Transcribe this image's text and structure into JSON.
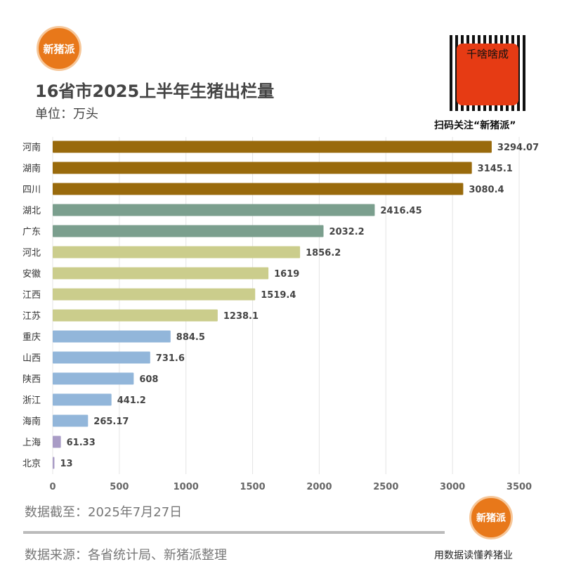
{
  "header": {
    "logo_text": "新猪派",
    "title": "16省市2025上半年生猪出栏量",
    "unit": "单位：万头",
    "qr_overlay_text": "千啥啥成",
    "qr_caption": "扫码关注“新猪派”"
  },
  "footer": {
    "date_note": "数据截至：2025年7月27日",
    "source": "数据来源：各省统计局、新猪派整理",
    "logo_text": "新猪派",
    "slogan": "用数据读懂养猪业"
  },
  "chart_data": {
    "type": "bar",
    "orientation": "horizontal",
    "title": "16省市2025上半年生猪出栏量",
    "ylabel": "",
    "xlabel": "",
    "xlim": [
      0,
      3500
    ],
    "xticks": [
      0,
      500,
      1000,
      1500,
      2000,
      2500,
      3000,
      3500
    ],
    "grid": true,
    "categories": [
      "河南",
      "湖南",
      "四川",
      "湖北",
      "广东",
      "河北",
      "安徽",
      "江西",
      "江苏",
      "重庆",
      "山西",
      "陕西",
      "浙江",
      "海南",
      "上海",
      "北京"
    ],
    "values": [
      3294.07,
      3145.1,
      3080.4,
      2416.45,
      2032.2,
      1856.2,
      1619,
      1519.4,
      1238.1,
      884.5,
      731.6,
      608,
      441.2,
      265.17,
      61.33,
      13
    ],
    "labels": [
      "3294.07",
      "3145.1",
      "3080.4",
      "2416.45",
      "2032.2",
      "1856.2",
      "1619",
      "1519.4",
      "1238.1",
      "884.5",
      "731.6",
      "608",
      "441.2",
      "265.17",
      "61.33",
      "13"
    ],
    "colors": [
      "#996a0c",
      "#996a0c",
      "#996a0c",
      "#7b9f8e",
      "#7b9f8e",
      "#cbcd8c",
      "#cbcd8c",
      "#cbcd8c",
      "#cbcd8c",
      "#92b6da",
      "#92b6da",
      "#92b6da",
      "#92b6da",
      "#92b6da",
      "#a99cc6",
      "#a99cc6"
    ]
  }
}
